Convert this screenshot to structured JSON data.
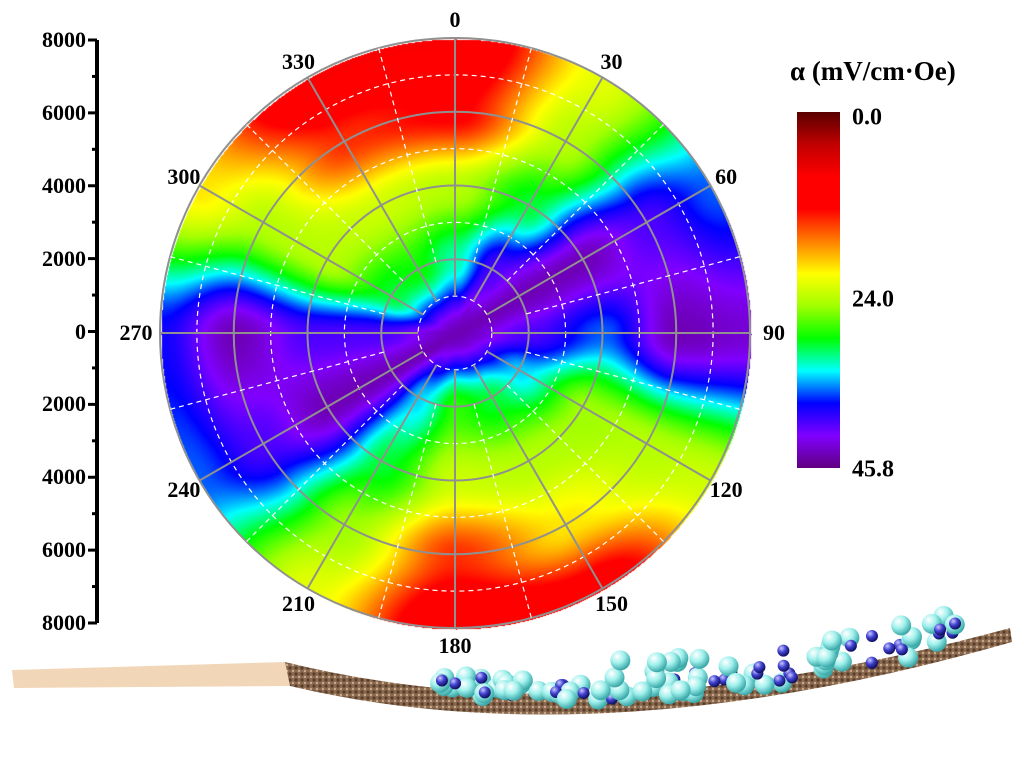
{
  "chart_data": {
    "type": "heatmap",
    "projection": "polar",
    "angular_direction": "clockwise",
    "angular_zero": "top",
    "angular_ticks": [
      "0",
      "30",
      "60",
      "90",
      "120",
      "150",
      "180",
      "210",
      "240",
      "270",
      "300",
      "330"
    ],
    "radial_range": [
      0,
      8000
    ],
    "radial_tick_labels": [
      "8000",
      "6000",
      "4000",
      "2000",
      "0",
      "2000",
      "4000",
      "6000",
      "8000"
    ],
    "grid": true,
    "grid_radii": [
      0,
      2000,
      4000,
      6000,
      8000
    ],
    "grid_angles": [
      0,
      30,
      60,
      90,
      120,
      150,
      180,
      210,
      240,
      270,
      300,
      330
    ],
    "values": [
      [
        44,
        44,
        44,
        44,
        44,
        44,
        44,
        44,
        44,
        44,
        44,
        44
      ],
      [
        32,
        40,
        44,
        40,
        34,
        30,
        28,
        34,
        44,
        40,
        30,
        29
      ],
      [
        24,
        30,
        44,
        36,
        25,
        24,
        23,
        30,
        44,
        40,
        24,
        23
      ],
      [
        12,
        24,
        40,
        44,
        24,
        20,
        14,
        25,
        40,
        44,
        24,
        14
      ],
      [
        8,
        22,
        36,
        43,
        23,
        10,
        8,
        22,
        36,
        38,
        20,
        8
      ]
    ],
    "colorbar": {
      "title": "α (mV/cm·Oe)",
      "min": 0.0,
      "max": 45.8,
      "tick_labels": [
        "0.0",
        "24.0",
        "45.8"
      ],
      "orientation": "vertical",
      "placement": "right",
      "colormap": [
        "#5a0000",
        "#c00000",
        "#ff0000",
        "#ff0000",
        "#ff8000",
        "#ffff00",
        "#a0ff00",
        "#00ff00",
        "#00ffff",
        "#0000ff",
        "#8000ff",
        "#600080"
      ]
    }
  }
}
